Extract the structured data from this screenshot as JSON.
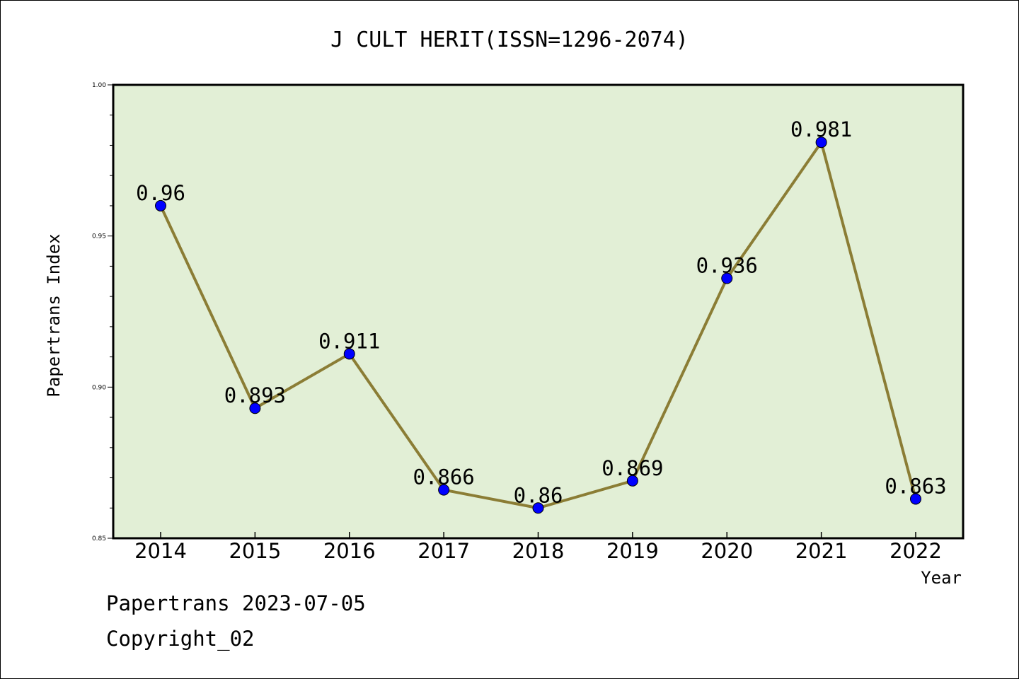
{
  "chart_data": {
    "type": "line",
    "title": "J CULT HERIT(ISSN=1296-2074)",
    "xlabel": "Year",
    "ylabel": "Papertrans Index",
    "categories": [
      "2014",
      "2015",
      "2016",
      "2017",
      "2018",
      "2019",
      "2020",
      "2021",
      "2022"
    ],
    "values": [
      0.96,
      0.893,
      0.911,
      0.866,
      0.86,
      0.869,
      0.936,
      0.981,
      0.863
    ],
    "data_labels": [
      "0.96",
      "0.893",
      "0.911",
      "0.866",
      "0.86",
      "0.869",
      "0.936",
      "0.981",
      "0.863"
    ],
    "ylim": [
      0.85,
      1.0
    ],
    "yticks": [
      "0.85",
      "0.90",
      "0.95",
      "1.00"
    ],
    "grid": false,
    "line_color": "#8b7d35",
    "marker_color": "#0000ff",
    "plot_background": "#e2efd6"
  },
  "footer": {
    "line1": "Papertrans 2023-07-05",
    "line2": "Copyright_02"
  }
}
